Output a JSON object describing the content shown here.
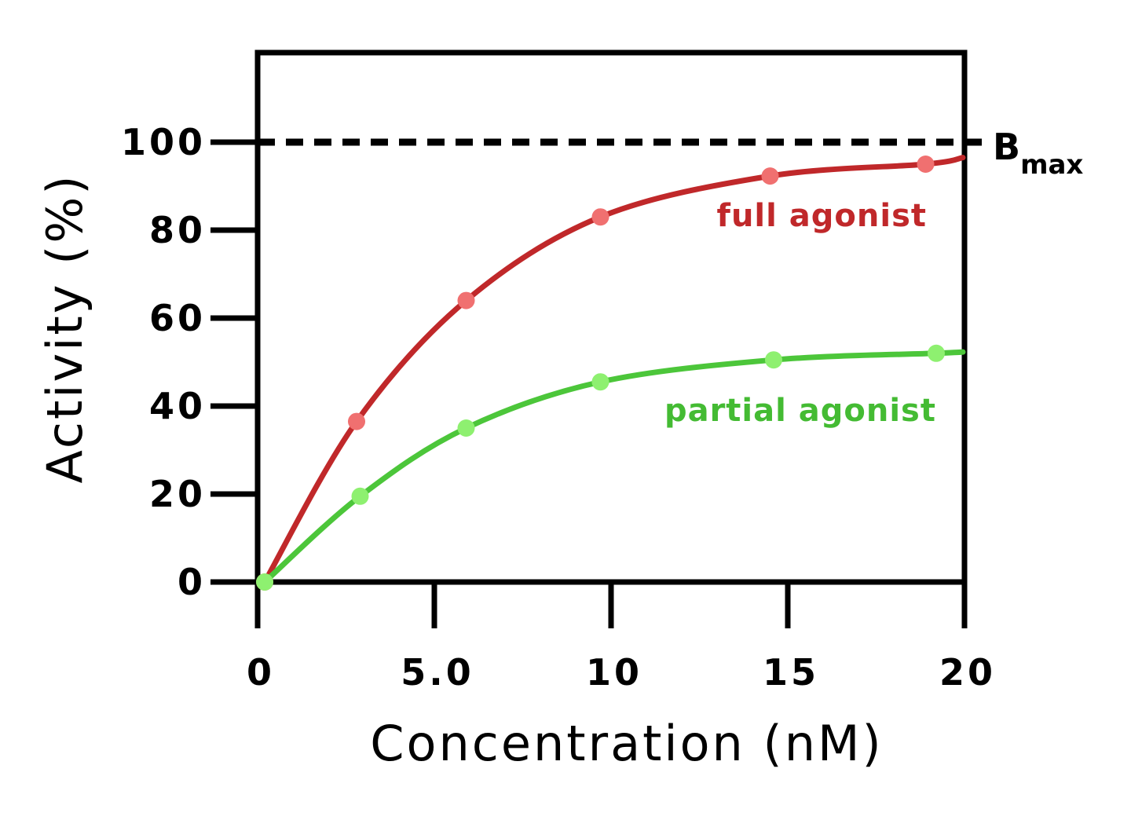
{
  "chart_data": {
    "type": "line",
    "xlabel": "Concentration (nM)",
    "ylabel": "Activity (%)",
    "xlim": [
      0,
      20
    ],
    "ylim": [
      0,
      100
    ],
    "x_ticks": [
      "0",
      "5.0",
      "10",
      "15",
      "20"
    ],
    "y_ticks": [
      "0",
      "20",
      "40",
      "60",
      "80",
      "100"
    ],
    "grid": false,
    "reference_line": {
      "y": 100,
      "style": "dashed",
      "label_main": "B",
      "label_sub": "max"
    },
    "series": [
      {
        "name": "full agonist",
        "color": "#c0282a",
        "marker_color": "#f07070",
        "label_color": "#c0282a",
        "x": [
          0.2,
          2.8,
          5.9,
          9.7,
          14.5,
          18.9
        ],
        "y": [
          0,
          36.5,
          64,
          83,
          92.3,
          95
        ]
      },
      {
        "name": "partial agonist",
        "color": "#4cc63a",
        "marker_color": "#8ef070",
        "label_color": "#44bb33",
        "x": [
          0.2,
          2.9,
          5.9,
          9.7,
          14.6,
          19.2
        ],
        "y": [
          0,
          19.5,
          35,
          45.5,
          50.5,
          52
        ]
      }
    ]
  }
}
